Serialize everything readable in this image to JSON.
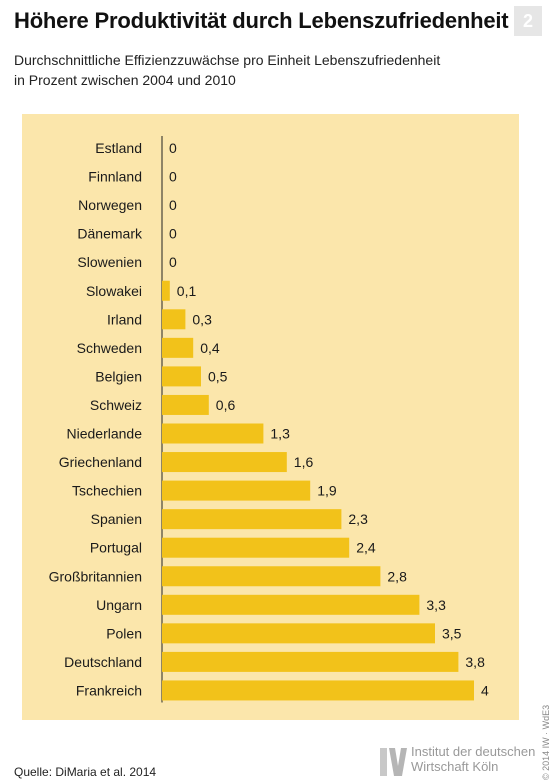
{
  "header": {
    "title": "Höhere Produktivität durch Lebenszufriedenheit",
    "badge": "2",
    "subtitle_line1": "Durchschnittliche Effizienzzuwächse pro Einheit Lebenszufriedenheit",
    "subtitle_line2": "in Prozent zwischen 2004 und 2010"
  },
  "footer": {
    "source": "Quelle: DiMaria et al. 2014",
    "logo_line1": "Institut der deutschen",
    "logo_line2": "Wirtschaft Köln",
    "copyright": "© 2014 IW · WdE3"
  },
  "colors": {
    "panel_background": "#fbe6ab",
    "bar": "#f2c21a",
    "axis": "#222222"
  },
  "chart_data": {
    "type": "bar",
    "orientation": "horizontal",
    "title": "Höhere Produktivität durch Lebenszufriedenheit",
    "subtitle": "Durchschnittliche Effizienzzuwächse pro Einheit Lebenszufriedenheit in Prozent zwischen 2004 und 2010",
    "xlabel": "",
    "ylabel": "",
    "xlim": [
      0,
      4
    ],
    "grid": false,
    "categories": [
      "Estland",
      "Finnland",
      "Norwegen",
      "Dänemark",
      "Slowenien",
      "Slowakei",
      "Irland",
      "Schweden",
      "Belgien",
      "Schweiz",
      "Niederlande",
      "Griechenland",
      "Tschechien",
      "Spanien",
      "Portugal",
      "Großbritannien",
      "Ungarn",
      "Polen",
      "Deutschland",
      "Frankreich"
    ],
    "values": [
      0,
      0,
      0,
      0,
      0,
      0.1,
      0.3,
      0.4,
      0.5,
      0.6,
      1.3,
      1.6,
      1.9,
      2.3,
      2.4,
      2.8,
      3.3,
      3.5,
      3.8,
      4
    ],
    "value_labels": [
      "0",
      "0",
      "0",
      "0",
      "0",
      "0,1",
      "0,3",
      "0,4",
      "0,5",
      "0,6",
      "1,3",
      "1,6",
      "1,9",
      "2,3",
      "2,4",
      "2,8",
      "3,3",
      "3,5",
      "3,8",
      "4"
    ]
  }
}
